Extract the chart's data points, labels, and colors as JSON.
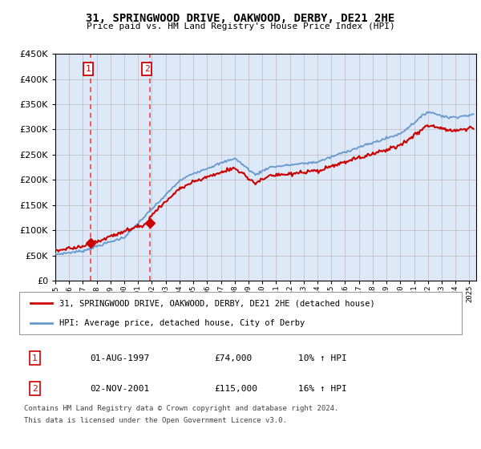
{
  "title": "31, SPRINGWOOD DRIVE, OAKWOOD, DERBY, DE21 2HE",
  "subtitle": "Price paid vs. HM Land Registry's House Price Index (HPI)",
  "ylim": [
    0,
    450000
  ],
  "xlim_start": 1995.0,
  "xlim_end": 2025.5,
  "purchase1_date": 1997.583,
  "purchase1_price": 74000,
  "purchase1_label": "1",
  "purchase2_date": 2001.833,
  "purchase2_price": 115000,
  "purchase2_label": "2",
  "legend_line1": "31, SPRINGWOOD DRIVE, OAKWOOD, DERBY, DE21 2HE (detached house)",
  "legend_line2": "HPI: Average price, detached house, City of Derby",
  "table_row1": [
    "1",
    "01-AUG-1997",
    "£74,000",
    "10% ↑ HPI"
  ],
  "table_row2": [
    "2",
    "02-NOV-2001",
    "£115,000",
    "16% ↑ HPI"
  ],
  "footnote1": "Contains HM Land Registry data © Crown copyright and database right 2024.",
  "footnote2": "This data is licensed under the Open Government Licence v3.0.",
  "hpi_color": "#6699cc",
  "price_color": "#cc0000",
  "vline_color": "#ee3333",
  "bg_color": "#dde8f8",
  "plot_bg": "#ffffff",
  "grid_color": "#bbbbbb"
}
